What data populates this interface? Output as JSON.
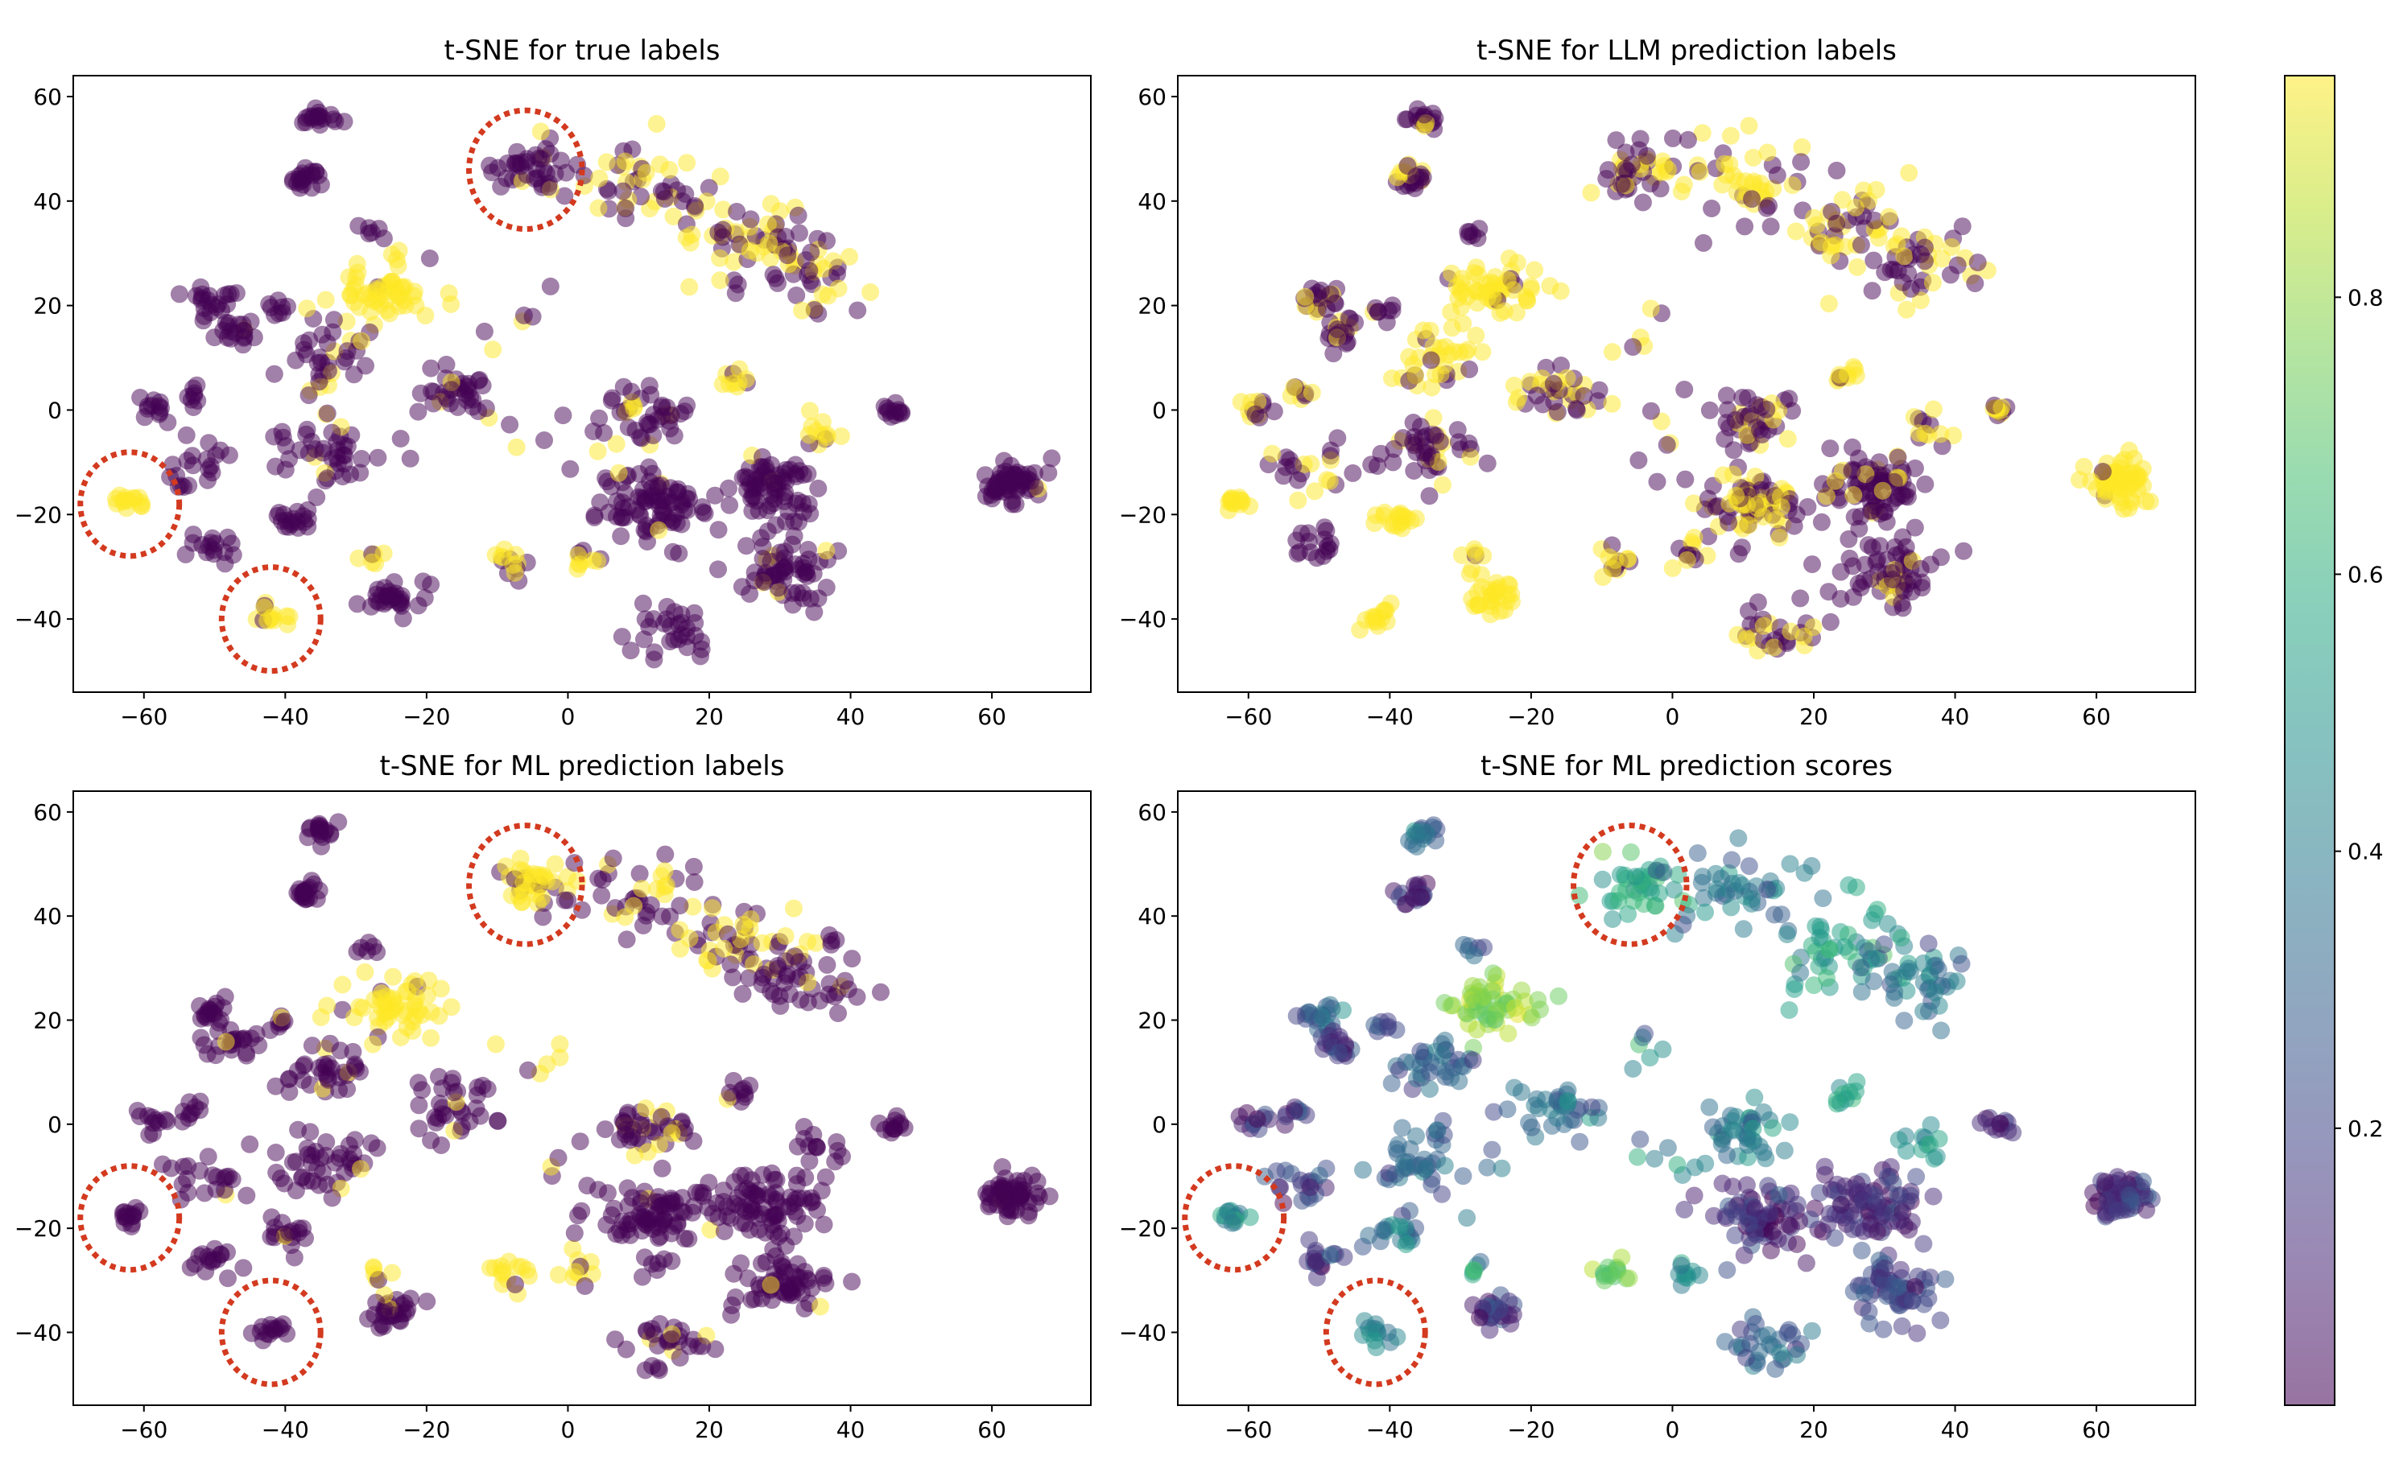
{
  "chart_data": [
    {
      "type": "scatter",
      "title": "t-SNE for true labels",
      "xlim": [
        -70,
        74
      ],
      "ylim": [
        -54,
        64
      ],
      "xticks": [
        -60,
        -40,
        -20,
        0,
        20,
        40,
        60
      ],
      "yticks": [
        -40,
        -20,
        0,
        20,
        40,
        60
      ],
      "color_mode": "binary",
      "highlight_circles": [
        {
          "x": -6,
          "y": 46,
          "r": 8
        },
        {
          "x": -62,
          "y": -18,
          "r": 7
        },
        {
          "x": -42,
          "y": -40,
          "r": 7
        }
      ],
      "clusters": [
        {
          "x": -35,
          "y": 56,
          "n": 18,
          "s": 1.2,
          "v": 0.02
        },
        {
          "x": -37,
          "y": 44.5,
          "n": 20,
          "s": 1.2,
          "v": 0.02
        },
        {
          "x": -5,
          "y": 46,
          "n": 40,
          "s": 2.8,
          "v": 0.12
        },
        {
          "x": 10,
          "y": 44,
          "n": 45,
          "s": 5,
          "v": 0.55
        },
        {
          "x": 25,
          "y": 34,
          "n": 50,
          "s": 5,
          "v": 0.6
        },
        {
          "x": 34,
          "y": 27,
          "n": 40,
          "s": 4,
          "v": 0.25
        },
        {
          "x": -28,
          "y": 34,
          "n": 6,
          "s": 0.8,
          "v": 0.02
        },
        {
          "x": -25,
          "y": 23,
          "n": 55,
          "s": 3.2,
          "v": 0.95
        },
        {
          "x": -50,
          "y": 21,
          "n": 20,
          "s": 1.6,
          "v": 0.02
        },
        {
          "x": -47,
          "y": 15,
          "n": 20,
          "s": 1.6,
          "v": 0.02
        },
        {
          "x": -41,
          "y": 19,
          "n": 8,
          "s": 1,
          "v": 0.02
        },
        {
          "x": -34,
          "y": 10,
          "n": 35,
          "s": 3,
          "v": 0.08
        },
        {
          "x": -16,
          "y": 3,
          "n": 35,
          "s": 3,
          "v": 0.15
        },
        {
          "x": -59,
          "y": 0.5,
          "n": 12,
          "s": 1.5,
          "v": 0.02
        },
        {
          "x": -53,
          "y": 3,
          "n": 8,
          "s": 1,
          "v": 0.02
        },
        {
          "x": -52,
          "y": -11,
          "n": 20,
          "s": 2.5,
          "v": 0.02
        },
        {
          "x": -35,
          "y": -8,
          "n": 45,
          "s": 4,
          "v": 0.08
        },
        {
          "x": -39,
          "y": -21,
          "n": 18,
          "s": 1.5,
          "v": 0.02
        },
        {
          "x": -62,
          "y": -17.5,
          "n": 14,
          "s": 0.9,
          "v": 0.98
        },
        {
          "x": -50,
          "y": -26,
          "n": 16,
          "s": 1.6,
          "v": 0.02
        },
        {
          "x": -42,
          "y": -40,
          "n": 14,
          "s": 1.2,
          "v": 0.93
        },
        {
          "x": -25,
          "y": -36,
          "n": 30,
          "s": 1.8,
          "v": 0.02
        },
        {
          "x": -28,
          "y": -28,
          "n": 6,
          "s": 1.2,
          "v": 0.9
        },
        {
          "x": -8,
          "y": -29,
          "n": 14,
          "s": 1.5,
          "v": 0.6
        },
        {
          "x": 2,
          "y": -28,
          "n": 10,
          "s": 1.5,
          "v": 0.5
        },
        {
          "x": 11,
          "y": -1,
          "n": 40,
          "s": 3,
          "v": 0.2
        },
        {
          "x": 12,
          "y": -18,
          "n": 80,
          "s": 4,
          "v": 0.05
        },
        {
          "x": 28,
          "y": -15,
          "n": 80,
          "s": 4,
          "v": 0.05
        },
        {
          "x": 31,
          "y": -31,
          "n": 60,
          "s": 3.5,
          "v": 0.08
        },
        {
          "x": 14,
          "y": -42,
          "n": 30,
          "s": 3,
          "v": 0.05
        },
        {
          "x": 24,
          "y": 6,
          "n": 10,
          "s": 1.2,
          "v": 0.9
        },
        {
          "x": 36,
          "y": -4,
          "n": 12,
          "s": 2,
          "v": 0.8
        },
        {
          "x": 46,
          "y": 0,
          "n": 12,
          "s": 0.9,
          "v": 0.02
        },
        {
          "x": 63,
          "y": -14,
          "n": 60,
          "s": 2.2,
          "v": 0.02
        },
        {
          "x": 0,
          "y": -7,
          "n": 8,
          "s": 4,
          "v": 0.4
        },
        {
          "x": -5,
          "y": 15,
          "n": 6,
          "s": 3,
          "v": 0.5
        }
      ]
    },
    {
      "type": "scatter",
      "title": "t-SNE for LLM prediction labels",
      "xlim": [
        -70,
        74
      ],
      "ylim": [
        -54,
        64
      ],
      "xticks": [
        -60,
        -40,
        -20,
        0,
        20,
        40,
        60
      ],
      "yticks": [
        -40,
        -20,
        0,
        20,
        40,
        60
      ],
      "color_mode": "binary",
      "highlight_circles": [],
      "clusters": [
        {
          "x": -35,
          "y": 56,
          "n": 18,
          "s": 1.2,
          "v": 0.15
        },
        {
          "x": -37,
          "y": 44.5,
          "n": 20,
          "s": 1.2,
          "v": 0.3
        },
        {
          "x": -5,
          "y": 46,
          "n": 40,
          "s": 2.8,
          "v": 0.6
        },
        {
          "x": 10,
          "y": 44,
          "n": 45,
          "s": 5,
          "v": 0.6
        },
        {
          "x": 25,
          "y": 34,
          "n": 50,
          "s": 5,
          "v": 0.6
        },
        {
          "x": 34,
          "y": 27,
          "n": 40,
          "s": 4,
          "v": 0.35
        },
        {
          "x": -28,
          "y": 34,
          "n": 6,
          "s": 0.8,
          "v": 0.02
        },
        {
          "x": -25,
          "y": 23,
          "n": 55,
          "s": 3.2,
          "v": 0.95
        },
        {
          "x": -50,
          "y": 21,
          "n": 20,
          "s": 1.6,
          "v": 0.3
        },
        {
          "x": -47,
          "y": 15,
          "n": 20,
          "s": 1.6,
          "v": 0.1
        },
        {
          "x": -41,
          "y": 19,
          "n": 8,
          "s": 1,
          "v": 0.1
        },
        {
          "x": -34,
          "y": 10,
          "n": 35,
          "s": 3,
          "v": 0.7
        },
        {
          "x": -16,
          "y": 3,
          "n": 35,
          "s": 3,
          "v": 0.4
        },
        {
          "x": -59,
          "y": 0.5,
          "n": 12,
          "s": 1.5,
          "v": 0.5
        },
        {
          "x": -53,
          "y": 3,
          "n": 8,
          "s": 1,
          "v": 0.3
        },
        {
          "x": -52,
          "y": -11,
          "n": 20,
          "s": 2.5,
          "v": 0.55
        },
        {
          "x": -35,
          "y": -8,
          "n": 45,
          "s": 4,
          "v": 0.15
        },
        {
          "x": -39,
          "y": -21,
          "n": 18,
          "s": 1.5,
          "v": 0.95
        },
        {
          "x": -62,
          "y": -17.5,
          "n": 14,
          "s": 0.9,
          "v": 0.98
        },
        {
          "x": -50,
          "y": -26,
          "n": 16,
          "s": 1.6,
          "v": 0.02
        },
        {
          "x": -42,
          "y": -40,
          "n": 14,
          "s": 1.2,
          "v": 0.98
        },
        {
          "x": -25,
          "y": -36,
          "n": 30,
          "s": 1.8,
          "v": 0.95
        },
        {
          "x": -28,
          "y": -28,
          "n": 6,
          "s": 1.2,
          "v": 0.95
        },
        {
          "x": -8,
          "y": -29,
          "n": 14,
          "s": 1.5,
          "v": 0.6
        },
        {
          "x": 2,
          "y": -28,
          "n": 10,
          "s": 1.5,
          "v": 0.6
        },
        {
          "x": 11,
          "y": -1,
          "n": 40,
          "s": 3,
          "v": 0.3
        },
        {
          "x": 12,
          "y": -18,
          "n": 80,
          "s": 4,
          "v": 0.5
        },
        {
          "x": 28,
          "y": -15,
          "n": 80,
          "s": 4,
          "v": 0.15
        },
        {
          "x": 31,
          "y": -31,
          "n": 60,
          "s": 3.5,
          "v": 0.08
        },
        {
          "x": 14,
          "y": -42,
          "n": 30,
          "s": 3,
          "v": 0.4
        },
        {
          "x": 24,
          "y": 6,
          "n": 10,
          "s": 1.2,
          "v": 0.95
        },
        {
          "x": 36,
          "y": -4,
          "n": 12,
          "s": 2,
          "v": 0.8
        },
        {
          "x": 46,
          "y": 0,
          "n": 12,
          "s": 0.9,
          "v": 0.85
        },
        {
          "x": 63,
          "y": -14,
          "n": 60,
          "s": 2.2,
          "v": 0.98
        },
        {
          "x": 0,
          "y": -7,
          "n": 8,
          "s": 4,
          "v": 0.6
        },
        {
          "x": -5,
          "y": 15,
          "n": 6,
          "s": 3,
          "v": 0.6
        }
      ]
    },
    {
      "type": "scatter",
      "title": "t-SNE for ML prediction labels",
      "xlim": [
        -70,
        74
      ],
      "ylim": [
        -54,
        64
      ],
      "xticks": [
        -60,
        -40,
        -20,
        0,
        20,
        40,
        60
      ],
      "yticks": [
        -40,
        -20,
        0,
        20,
        40,
        60
      ],
      "color_mode": "binary",
      "highlight_circles": [
        {
          "x": -6,
          "y": 46,
          "r": 8
        },
        {
          "x": -62,
          "y": -18,
          "r": 7
        },
        {
          "x": -42,
          "y": -40,
          "r": 7
        }
      ],
      "clusters": [
        {
          "x": -35,
          "y": 56,
          "n": 18,
          "s": 1.2,
          "v": 0.05
        },
        {
          "x": -37,
          "y": 44.5,
          "n": 20,
          "s": 1.2,
          "v": 0.02
        },
        {
          "x": -5,
          "y": 46,
          "n": 40,
          "s": 2.8,
          "v": 0.7
        },
        {
          "x": 10,
          "y": 44,
          "n": 45,
          "s": 5,
          "v": 0.3
        },
        {
          "x": 25,
          "y": 34,
          "n": 50,
          "s": 5,
          "v": 0.45
        },
        {
          "x": 34,
          "y": 27,
          "n": 40,
          "s": 4,
          "v": 0.2
        },
        {
          "x": -28,
          "y": 34,
          "n": 6,
          "s": 0.8,
          "v": 0.02
        },
        {
          "x": -25,
          "y": 23,
          "n": 55,
          "s": 3.2,
          "v": 0.9
        },
        {
          "x": -50,
          "y": 21,
          "n": 20,
          "s": 1.6,
          "v": 0.05
        },
        {
          "x": -47,
          "y": 15,
          "n": 20,
          "s": 1.6,
          "v": 0.02
        },
        {
          "x": -41,
          "y": 19,
          "n": 8,
          "s": 1,
          "v": 0.02
        },
        {
          "x": -34,
          "y": 10,
          "n": 35,
          "s": 3,
          "v": 0.05
        },
        {
          "x": -16,
          "y": 3,
          "n": 35,
          "s": 3,
          "v": 0.05
        },
        {
          "x": -59,
          "y": 0.5,
          "n": 12,
          "s": 1.5,
          "v": 0.02
        },
        {
          "x": -53,
          "y": 3,
          "n": 8,
          "s": 1,
          "v": 0.02
        },
        {
          "x": -52,
          "y": -11,
          "n": 20,
          "s": 2.5,
          "v": 0.02
        },
        {
          "x": -35,
          "y": -8,
          "n": 45,
          "s": 4,
          "v": 0.08
        },
        {
          "x": -39,
          "y": -21,
          "n": 18,
          "s": 1.5,
          "v": 0.02
        },
        {
          "x": -62,
          "y": -17.5,
          "n": 14,
          "s": 0.9,
          "v": 0.02
        },
        {
          "x": -50,
          "y": -26,
          "n": 16,
          "s": 1.6,
          "v": 0.02
        },
        {
          "x": -42,
          "y": -40,
          "n": 14,
          "s": 1.2,
          "v": 0.02
        },
        {
          "x": -25,
          "y": -36,
          "n": 30,
          "s": 1.8,
          "v": 0.02
        },
        {
          "x": -28,
          "y": -28,
          "n": 6,
          "s": 1.2,
          "v": 0.85
        },
        {
          "x": -8,
          "y": -29,
          "n": 14,
          "s": 1.5,
          "v": 0.9
        },
        {
          "x": 2,
          "y": -28,
          "n": 10,
          "s": 1.5,
          "v": 0.6
        },
        {
          "x": 11,
          "y": -1,
          "n": 40,
          "s": 3,
          "v": 0.3
        },
        {
          "x": 12,
          "y": -18,
          "n": 80,
          "s": 4,
          "v": 0.02
        },
        {
          "x": 28,
          "y": -15,
          "n": 80,
          "s": 4,
          "v": 0.02
        },
        {
          "x": 31,
          "y": -31,
          "n": 60,
          "s": 3.5,
          "v": 0.02
        },
        {
          "x": 14,
          "y": -42,
          "n": 30,
          "s": 3,
          "v": 0.08
        },
        {
          "x": 24,
          "y": 6,
          "n": 10,
          "s": 1.2,
          "v": 0.2
        },
        {
          "x": 36,
          "y": -4,
          "n": 12,
          "s": 2,
          "v": 0.2
        },
        {
          "x": 46,
          "y": 0,
          "n": 12,
          "s": 0.9,
          "v": 0.02
        },
        {
          "x": 63,
          "y": -14,
          "n": 60,
          "s": 2.2,
          "v": 0.02
        },
        {
          "x": 0,
          "y": -7,
          "n": 8,
          "s": 4,
          "v": 0.3
        },
        {
          "x": -5,
          "y": 15,
          "n": 6,
          "s": 3,
          "v": 0.3
        }
      ]
    },
    {
      "type": "scatter",
      "title": "t-SNE for ML prediction scores",
      "xlim": [
        -70,
        74
      ],
      "ylim": [
        -54,
        64
      ],
      "xticks": [
        -60,
        -40,
        -20,
        0,
        20,
        40,
        60
      ],
      "yticks": [
        -40,
        -20,
        0,
        20,
        40,
        60
      ],
      "color_mode": "continuous",
      "highlight_circles": [
        {
          "x": -6,
          "y": 46,
          "r": 8
        },
        {
          "x": -62,
          "y": -18,
          "r": 7
        },
        {
          "x": -42,
          "y": -40,
          "r": 7
        }
      ],
      "clusters": [
        {
          "x": -35,
          "y": 56,
          "n": 18,
          "s": 1.2,
          "v": 0.35
        },
        {
          "x": -37,
          "y": 44.5,
          "n": 20,
          "s": 1.2,
          "v": 0.1
        },
        {
          "x": -5,
          "y": 46,
          "n": 40,
          "s": 2.8,
          "v": 0.6
        },
        {
          "x": 10,
          "y": 44,
          "n": 45,
          "s": 5,
          "v": 0.35
        },
        {
          "x": 25,
          "y": 34,
          "n": 50,
          "s": 5,
          "v": 0.55
        },
        {
          "x": 34,
          "y": 27,
          "n": 40,
          "s": 4,
          "v": 0.35
        },
        {
          "x": -28,
          "y": 34,
          "n": 6,
          "s": 0.8,
          "v": 0.3
        },
        {
          "x": -25,
          "y": 23,
          "n": 55,
          "s": 3.2,
          "v": 0.8
        },
        {
          "x": -50,
          "y": 21,
          "n": 20,
          "s": 1.6,
          "v": 0.3
        },
        {
          "x": -47,
          "y": 15,
          "n": 20,
          "s": 1.6,
          "v": 0.15
        },
        {
          "x": -41,
          "y": 19,
          "n": 8,
          "s": 1,
          "v": 0.15
        },
        {
          "x": -34,
          "y": 10,
          "n": 35,
          "s": 3,
          "v": 0.3
        },
        {
          "x": -16,
          "y": 3,
          "n": 35,
          "s": 3,
          "v": 0.35
        },
        {
          "x": -59,
          "y": 0.5,
          "n": 12,
          "s": 1.5,
          "v": 0.1
        },
        {
          "x": -53,
          "y": 3,
          "n": 8,
          "s": 1,
          "v": 0.15
        },
        {
          "x": -52,
          "y": -11,
          "n": 20,
          "s": 2.5,
          "v": 0.15
        },
        {
          "x": -35,
          "y": -8,
          "n": 45,
          "s": 4,
          "v": 0.3
        },
        {
          "x": -39,
          "y": -21,
          "n": 18,
          "s": 1.5,
          "v": 0.35
        },
        {
          "x": -62,
          "y": -17.5,
          "n": 14,
          "s": 0.9,
          "v": 0.45
        },
        {
          "x": -50,
          "y": -26,
          "n": 16,
          "s": 1.6,
          "v": 0.15
        },
        {
          "x": -42,
          "y": -40,
          "n": 14,
          "s": 1.2,
          "v": 0.45
        },
        {
          "x": -25,
          "y": -36,
          "n": 30,
          "s": 1.8,
          "v": 0.15
        },
        {
          "x": -28,
          "y": -28,
          "n": 6,
          "s": 1.2,
          "v": 0.5
        },
        {
          "x": -8,
          "y": -29,
          "n": 14,
          "s": 1.5,
          "v": 0.75
        },
        {
          "x": 2,
          "y": -28,
          "n": 10,
          "s": 1.5,
          "v": 0.45
        },
        {
          "x": 11,
          "y": -1,
          "n": 40,
          "s": 3,
          "v": 0.4
        },
        {
          "x": 12,
          "y": -18,
          "n": 80,
          "s": 4,
          "v": 0.12
        },
        {
          "x": 28,
          "y": -15,
          "n": 80,
          "s": 4,
          "v": 0.1
        },
        {
          "x": 31,
          "y": -31,
          "n": 60,
          "s": 3.5,
          "v": 0.2
        },
        {
          "x": 14,
          "y": -42,
          "n": 30,
          "s": 3,
          "v": 0.3
        },
        {
          "x": 24,
          "y": 6,
          "n": 10,
          "s": 1.2,
          "v": 0.55
        },
        {
          "x": 36,
          "y": -4,
          "n": 12,
          "s": 2,
          "v": 0.5
        },
        {
          "x": 46,
          "y": 0,
          "n": 12,
          "s": 0.9,
          "v": 0.1
        },
        {
          "x": 63,
          "y": -14,
          "n": 60,
          "s": 2.2,
          "v": 0.1
        },
        {
          "x": 0,
          "y": -7,
          "n": 8,
          "s": 4,
          "v": 0.45
        },
        {
          "x": -5,
          "y": 15,
          "n": 6,
          "s": 3,
          "v": 0.45
        }
      ]
    }
  ],
  "colorbar": {
    "min": 0.0,
    "max": 0.96,
    "ticks": [
      0.2,
      0.4,
      0.6,
      0.8
    ],
    "colormap": "viridis"
  },
  "colors": {
    "low": "#440154",
    "high": "#fde725",
    "highlight": "#d33a1f"
  }
}
